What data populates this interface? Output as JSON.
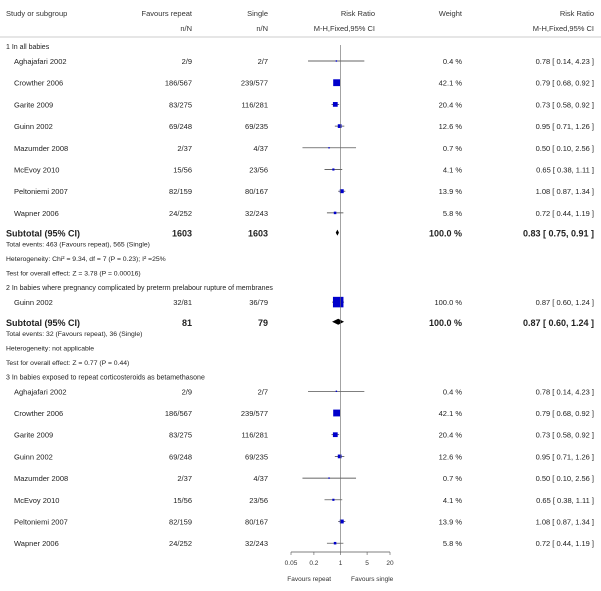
{
  "headers": {
    "study": "Study or subgroup",
    "fav_repeat": "Favours repeat",
    "single": "Single",
    "risk_ratio": "Risk Ratio",
    "weight": "Weight",
    "risk_ratio_right": "Risk Ratio",
    "nN_left": "n/N",
    "nN_right": "n/N",
    "method_center": "M-H,Fixed,95% CI",
    "method_right": "M-H,Fixed,95% CI"
  },
  "footer": {
    "ticks": [
      "0.05",
      "0.2",
      "1",
      "5",
      "20"
    ],
    "left_label": "Favours repeat",
    "right_label": "Favours single"
  },
  "colors": {
    "square": "#0000cc",
    "line": "#333333",
    "rule": "#999999",
    "text": "#222222"
  },
  "chart_data": {
    "type": "forest",
    "scale": "log",
    "xlim": [
      0.05,
      20
    ],
    "ticks": [
      0.05,
      0.2,
      1,
      5,
      20
    ],
    "xlabel_left": "Favours repeat",
    "xlabel_right": "Favours single",
    "groups": [
      {
        "title": "1 In all babies",
        "studies": [
          {
            "name": "Aghajafari 2002",
            "repeat": "2/9",
            "single": "2/7",
            "weight_pct": 0.4,
            "weight": "0.4 %",
            "rr": 0.78,
            "lo": 0.14,
            "hi": 4.23,
            "ci": "0.78 [ 0.14, 4.23 ]"
          },
          {
            "name": "Crowther 2006",
            "repeat": "186/567",
            "single": "239/577",
            "weight_pct": 42.1,
            "weight": "42.1 %",
            "rr": 0.79,
            "lo": 0.68,
            "hi": 0.92,
            "ci": "0.79 [ 0.68, 0.92 ]"
          },
          {
            "name": "Garite 2009",
            "repeat": "83/275",
            "single": "116/281",
            "weight_pct": 20.4,
            "weight": "20.4 %",
            "rr": 0.73,
            "lo": 0.58,
            "hi": 0.92,
            "ci": "0.73 [ 0.58, 0.92 ]"
          },
          {
            "name": "Guinn 2002",
            "repeat": "69/248",
            "single": "69/235",
            "weight_pct": 12.6,
            "weight": "12.6 %",
            "rr": 0.95,
            "lo": 0.71,
            "hi": 1.26,
            "ci": "0.95 [ 0.71, 1.26 ]"
          },
          {
            "name": "Mazumder 2008",
            "repeat": "2/37",
            "single": "4/37",
            "weight_pct": 0.7,
            "weight": "0.7 %",
            "rr": 0.5,
            "lo": 0.1,
            "hi": 2.56,
            "ci": "0.50 [ 0.10, 2.56 ]"
          },
          {
            "name": "McEvoy 2010",
            "repeat": "15/56",
            "single": "23/56",
            "weight_pct": 4.1,
            "weight": "4.1 %",
            "rr": 0.65,
            "lo": 0.38,
            "hi": 1.11,
            "ci": "0.65 [ 0.38, 1.11 ]"
          },
          {
            "name": "Peltoniemi 2007",
            "repeat": "82/159",
            "single": "80/167",
            "weight_pct": 13.9,
            "weight": "13.9 %",
            "rr": 1.08,
            "lo": 0.87,
            "hi": 1.34,
            "ci": "1.08 [ 0.87, 1.34 ]"
          },
          {
            "name": "Wapner 2006",
            "repeat": "24/252",
            "single": "32/243",
            "weight_pct": 5.8,
            "weight": "5.8 %",
            "rr": 0.72,
            "lo": 0.44,
            "hi": 1.19,
            "ci": "0.72 [ 0.44, 1.19 ]"
          }
        ],
        "subtotal": {
          "label": "Subtotal (95% CI)",
          "repeat": "1603",
          "single": "1603",
          "weight": "100.0 %",
          "rr": 0.83,
          "lo": 0.75,
          "hi": 0.91,
          "ci": "0.83 [ 0.75, 0.91 ]"
        },
        "notes": [
          "Total events: 463 (Favours repeat), 565 (Single)",
          "Heterogeneity: Chi² = 9.34, df = 7 (P = 0.23); I² =25%",
          "Test for overall effect: Z = 3.78 (P = 0.00016)"
        ]
      },
      {
        "title": "2 In babies where pregnancy complicated by preterm prelabour rupture of membranes",
        "studies": [
          {
            "name": "Guinn 2002",
            "repeat": "32/81",
            "single": "36/79",
            "weight_pct": 100.0,
            "weight": "100.0 %",
            "rr": 0.87,
            "lo": 0.6,
            "hi": 1.24,
            "ci": "0.87 [ 0.60, 1.24 ]"
          }
        ],
        "subtotal": {
          "label": "Subtotal (95% CI)",
          "repeat": "81",
          "single": "79",
          "weight": "100.0 %",
          "rr": 0.87,
          "lo": 0.6,
          "hi": 1.24,
          "ci": "0.87 [ 0.60, 1.24 ]"
        },
        "notes": [
          "Total events: 32 (Favours repeat), 36 (Single)",
          "Heterogeneity: not applicable",
          "Test for overall effect: Z = 0.77 (P = 0.44)"
        ]
      },
      {
        "title": "3 In babies exposed to repeat corticosteroids as betamethasone",
        "studies": [
          {
            "name": "Aghajafari 2002",
            "repeat": "2/9",
            "single": "2/7",
            "weight_pct": 0.4,
            "weight": "0.4 %",
            "rr": 0.78,
            "lo": 0.14,
            "hi": 4.23,
            "ci": "0.78 [ 0.14, 4.23 ]"
          },
          {
            "name": "Crowther 2006",
            "repeat": "186/567",
            "single": "239/577",
            "weight_pct": 42.1,
            "weight": "42.1 %",
            "rr": 0.79,
            "lo": 0.68,
            "hi": 0.92,
            "ci": "0.79 [ 0.68, 0.92 ]"
          },
          {
            "name": "Garite 2009",
            "repeat": "83/275",
            "single": "116/281",
            "weight_pct": 20.4,
            "weight": "20.4 %",
            "rr": 0.73,
            "lo": 0.58,
            "hi": 0.92,
            "ci": "0.73 [ 0.58, 0.92 ]"
          },
          {
            "name": "Guinn 2002",
            "repeat": "69/248",
            "single": "69/235",
            "weight_pct": 12.6,
            "weight": "12.6 %",
            "rr": 0.95,
            "lo": 0.71,
            "hi": 1.26,
            "ci": "0.95 [ 0.71, 1.26 ]"
          },
          {
            "name": "Mazumder 2008",
            "repeat": "2/37",
            "single": "4/37",
            "weight_pct": 0.7,
            "weight": "0.7 %",
            "rr": 0.5,
            "lo": 0.1,
            "hi": 2.56,
            "ci": "0.50 [ 0.10, 2.56 ]"
          },
          {
            "name": "McEvoy 2010",
            "repeat": "15/56",
            "single": "23/56",
            "weight_pct": 4.1,
            "weight": "4.1 %",
            "rr": 0.65,
            "lo": 0.38,
            "hi": 1.11,
            "ci": "0.65 [ 0.38, 1.11 ]"
          },
          {
            "name": "Peltoniemi 2007",
            "repeat": "82/159",
            "single": "80/167",
            "weight_pct": 13.9,
            "weight": "13.9 %",
            "rr": 1.08,
            "lo": 0.87,
            "hi": 1.34,
            "ci": "1.08 [ 0.87, 1.34 ]"
          },
          {
            "name": "Wapner 2006",
            "repeat": "24/252",
            "single": "32/243",
            "weight_pct": 5.8,
            "weight": "5.8 %",
            "rr": 0.72,
            "lo": 0.44,
            "hi": 1.19,
            "ci": "0.72 [ 0.44, 1.19 ]"
          }
        ]
      }
    ]
  }
}
